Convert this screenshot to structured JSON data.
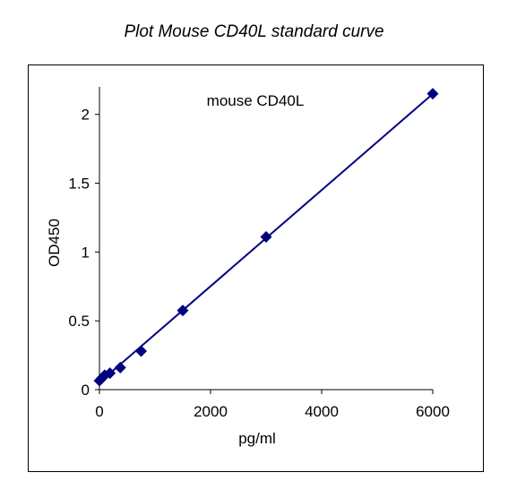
{
  "title": "Plot Mouse CD40L standard curve",
  "chart_data": {
    "type": "scatter",
    "title": "mouse CD40L",
    "xlabel": "pg/ml",
    "ylabel": "OD450",
    "xlim": [
      0,
      6000
    ],
    "ylim": [
      0,
      2.2
    ],
    "xticks": [
      0,
      2000,
      4000,
      6000
    ],
    "yticks": [
      0,
      0.5,
      1,
      1.5,
      2
    ],
    "xtick_labels": [
      "0",
      "2000",
      "4000",
      "6000"
    ],
    "ytick_labels": [
      "0",
      "0.5",
      "1",
      "1.5",
      "2"
    ],
    "grid": false,
    "legend": "none",
    "trendline": "linear",
    "series": [
      {
        "color": "#000080",
        "marker": "diamond",
        "x": [
          0,
          47,
          94,
          188,
          375,
          750,
          1500,
          3000,
          6000
        ],
        "y": [
          0.065,
          0.085,
          0.105,
          0.12,
          0.16,
          0.28,
          0.575,
          1.11,
          2.15
        ]
      }
    ]
  }
}
